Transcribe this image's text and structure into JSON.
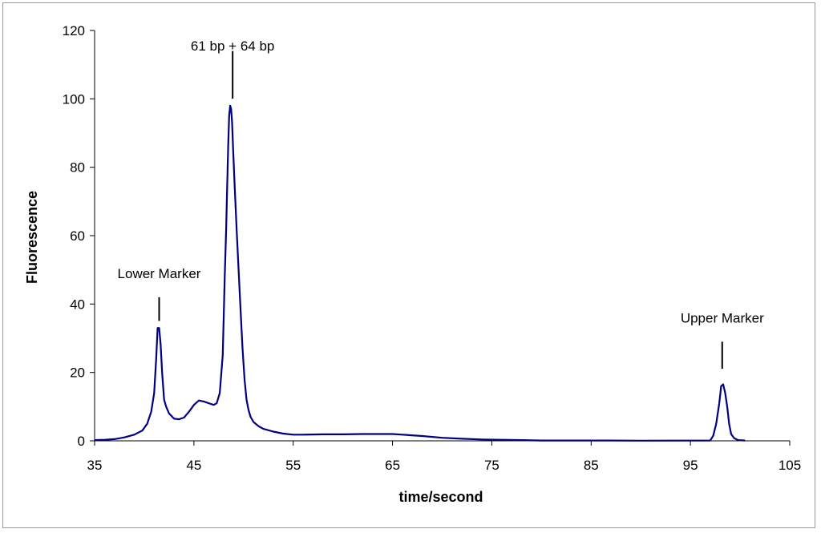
{
  "chart_data": {
    "type": "line",
    "title": "",
    "xlabel": "time/second",
    "ylabel": "Fluorescence",
    "xlim": [
      35,
      105
    ],
    "ylim": [
      0,
      120
    ],
    "x_ticks": [
      35,
      45,
      55,
      65,
      75,
      85,
      95,
      105
    ],
    "y_ticks": [
      0,
      20,
      40,
      60,
      80,
      100,
      120
    ],
    "grid": false,
    "line_color": "#000080",
    "series": [
      {
        "x": [
          35,
          36,
          37,
          38,
          39,
          39.8,
          40.3,
          40.7,
          41.0,
          41.2,
          41.35,
          41.5,
          41.65,
          41.8,
          42.0,
          42.2,
          42.5,
          43,
          43.5,
          44,
          44.5,
          45,
          45.5,
          46,
          46.5,
          47,
          47.3,
          47.6,
          47.9,
          48.1,
          48.25,
          48.35,
          48.45,
          48.55,
          48.65,
          48.75,
          48.85,
          48.95,
          49.1,
          49.3,
          49.5,
          49.7,
          49.9,
          50.1,
          50.3,
          50.5,
          50.7,
          51,
          51.5,
          52,
          53,
          54,
          55,
          56,
          58,
          60,
          62,
          64,
          65,
          66,
          68,
          70,
          72,
          74,
          76,
          78,
          80,
          84,
          86,
          90,
          97,
          97.3,
          97.6,
          97.9,
          98.1,
          98.3,
          98.5,
          98.7,
          98.9,
          99.1,
          99.4,
          99.8,
          100.5
        ],
        "y": [
          0.2,
          0.3,
          0.5,
          1.0,
          1.8,
          3.0,
          5.0,
          8.5,
          14,
          24,
          33,
          33,
          28,
          20,
          12,
          10,
          8,
          6.5,
          6.3,
          6.8,
          8.5,
          10.5,
          11.8,
          11.5,
          11.0,
          10.5,
          11,
          14,
          25,
          48,
          62,
          74,
          86,
          95,
          98,
          97,
          93,
          85,
          75,
          62,
          50,
          38,
          27,
          18,
          12,
          9,
          7,
          5.5,
          4.3,
          3.5,
          2.7,
          2.1,
          1.8,
          1.8,
          1.9,
          1.9,
          2.0,
          2.0,
          2.0,
          1.8,
          1.4,
          0.9,
          0.6,
          0.4,
          0.3,
          0.2,
          0.1,
          0.1,
          0.1,
          0.05,
          0.1,
          1.5,
          5,
          11,
          16,
          16.5,
          14,
          10,
          5,
          2,
          0.8,
          0.2,
          0.1
        ]
      }
    ],
    "annotations": [
      {
        "text": "Lower Marker",
        "x": 41.5,
        "y_top": 38,
        "y_bottom": 36,
        "label_y": 49
      },
      {
        "text": "61 bp + 64 bp",
        "x": 48.9,
        "y_top": 110,
        "y_bottom": 101,
        "label_y": 115.5
      },
      {
        "text": "Upper Marker",
        "x": 98.2,
        "y_top": 25,
        "y_bottom": 22,
        "label_y": 36
      }
    ]
  }
}
